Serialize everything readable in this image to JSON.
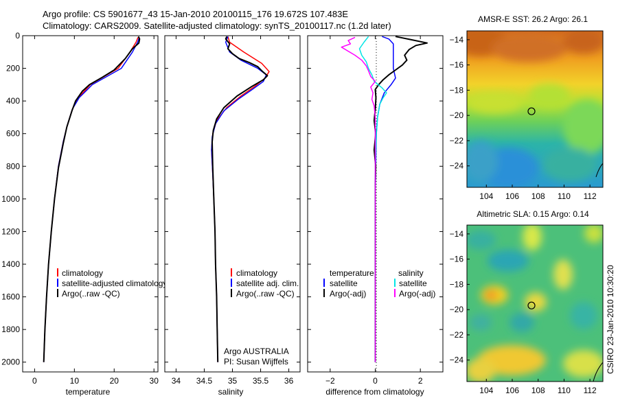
{
  "header": {
    "title_line1": "Argo profile: CS 5901677_43 15-Jan-2010 20100115_176 19.672S 107.483E",
    "title_line2": "Climatology: CARS2009. Satellite-adjusted climatology: synTS_20100117.nc (1.2d later)"
  },
  "side_stamp": "CSIRO 23-Jan-2010 10:30:20",
  "colors": {
    "red": "#ff0000",
    "blue": "#0000ff",
    "black": "#000000",
    "cyan": "#00e5e5",
    "magenta": "#ff00ff"
  },
  "chart_data": [
    {
      "id": "temperature",
      "type": "line",
      "title": "",
      "xlabel": "temperature",
      "ylabel": "",
      "xlim": [
        -3,
        31
      ],
      "ylim": [
        2060,
        0
      ],
      "xticks": [
        0,
        10,
        20,
        30
      ],
      "yticks": [
        0,
        200,
        400,
        600,
        800,
        1000,
        1200,
        1400,
        1600,
        1800,
        2000
      ],
      "series": [
        {
          "name": "climatology",
          "color": "red",
          "points": [
            [
              26.0,
              10
            ],
            [
              25.5,
              40
            ],
            [
              24.0,
              100
            ],
            [
              21.0,
              200
            ],
            [
              14.0,
              300
            ],
            [
              11.0,
              380
            ],
            [
              9.5,
              450
            ],
            [
              8.2,
              550
            ],
            [
              7.2,
              650
            ],
            [
              6.0,
              800
            ],
            [
              5.0,
              1000
            ],
            [
              4.2,
              1200
            ],
            [
              3.5,
              1400
            ],
            [
              3.0,
              1600
            ],
            [
              2.6,
              1800
            ],
            [
              2.3,
              2000
            ]
          ]
        },
        {
          "name": "satellite-adjusted climatology",
          "color": "blue",
          "points": [
            [
              26.3,
              10
            ],
            [
              25.9,
              40
            ],
            [
              24.6,
              100
            ],
            [
              21.8,
              200
            ],
            [
              14.5,
              300
            ],
            [
              11.2,
              380
            ],
            [
              9.5,
              450
            ],
            [
              8.2,
              550
            ],
            [
              7.2,
              650
            ],
            [
              6.0,
              800
            ],
            [
              5.0,
              1000
            ],
            [
              4.2,
              1200
            ],
            [
              3.5,
              1400
            ],
            [
              3.0,
              1600
            ],
            [
              2.6,
              1800
            ],
            [
              2.3,
              2000
            ]
          ]
        },
        {
          "name": "Argo(..raw -QC)",
          "color": "black",
          "points": [
            [
              26.1,
              5
            ],
            [
              26.4,
              20
            ],
            [
              26.2,
              45
            ],
            [
              24.6,
              80
            ],
            [
              22.8,
              140
            ],
            [
              20.0,
              210
            ],
            [
              17.0,
              255
            ],
            [
              13.8,
              300
            ],
            [
              12.0,
              340
            ],
            [
              10.3,
              400
            ],
            [
              9.4,
              460
            ],
            [
              8.1,
              560
            ],
            [
              7.2,
              660
            ],
            [
              6.0,
              810
            ],
            [
              5.0,
              1000
            ],
            [
              4.2,
              1200
            ],
            [
              3.5,
              1400
            ],
            [
              3.0,
              1600
            ],
            [
              2.6,
              1800
            ],
            [
              2.3,
              2000
            ]
          ]
        }
      ],
      "legend": {
        "position": "bottom-right",
        "entries": [
          {
            "label": "climatology",
            "color": "red"
          },
          {
            "label": "satellite-adjusted climatology",
            "color": "blue"
          },
          {
            "label": "Argo(..raw -QC)",
            "color": "black"
          }
        ]
      }
    },
    {
      "id": "salinity",
      "type": "line",
      "title": "",
      "xlabel": "salinity",
      "ylabel": "",
      "xlim": [
        33.8,
        36.2
      ],
      "ylim": [
        2060,
        0
      ],
      "xticks": [
        34,
        34.5,
        35,
        35.5,
        36
      ],
      "yticks": [
        0,
        200,
        400,
        600,
        800,
        1000,
        1200,
        1400,
        1600,
        1800,
        2000
      ],
      "series": [
        {
          "name": "climatology",
          "color": "red",
          "points": [
            [
              34.92,
              5
            ],
            [
              34.95,
              40
            ],
            [
              35.2,
              100
            ],
            [
              35.52,
              170
            ],
            [
              35.65,
              220
            ],
            [
              35.58,
              260
            ],
            [
              35.4,
              310
            ],
            [
              35.15,
              370
            ],
            [
              34.9,
              440
            ],
            [
              34.72,
              520
            ],
            [
              34.65,
              600
            ],
            [
              34.63,
              700
            ],
            [
              34.65,
              850
            ],
            [
              34.67,
              1000
            ],
            [
              34.69,
              1200
            ],
            [
              34.7,
              1400
            ],
            [
              34.72,
              1600
            ],
            [
              34.73,
              1800
            ],
            [
              34.74,
              2000
            ]
          ]
        },
        {
          "name": "satellite adj. clim.",
          "color": "blue",
          "points": [
            [
              34.92,
              5
            ],
            [
              34.88,
              40
            ],
            [
              34.95,
              100
            ],
            [
              35.15,
              150
            ],
            [
              35.45,
              200
            ],
            [
              35.6,
              240
            ],
            [
              35.55,
              280
            ],
            [
              35.35,
              330
            ],
            [
              35.1,
              390
            ],
            [
              34.85,
              460
            ],
            [
              34.7,
              540
            ],
            [
              34.64,
              620
            ],
            [
              34.63,
              700
            ],
            [
              34.65,
              850
            ],
            [
              34.67,
              1000
            ],
            [
              34.69,
              1200
            ],
            [
              34.7,
              1400
            ],
            [
              34.72,
              1600
            ],
            [
              34.73,
              1800
            ],
            [
              34.74,
              2000
            ]
          ]
        },
        {
          "name": "Argo(..raw -QC)",
          "color": "black",
          "points": [
            [
              34.9,
              5
            ],
            [
              34.88,
              20
            ],
            [
              34.95,
              50
            ],
            [
              34.92,
              80
            ],
            [
              35.0,
              110
            ],
            [
              35.12,
              140
            ],
            [
              35.3,
              165
            ],
            [
              35.45,
              190
            ],
            [
              35.52,
              215
            ],
            [
              35.62,
              245
            ],
            [
              35.55,
              270
            ],
            [
              35.35,
              310
            ],
            [
              35.08,
              370
            ],
            [
              34.85,
              440
            ],
            [
              34.72,
              510
            ],
            [
              34.66,
              580
            ],
            [
              34.64,
              650
            ],
            [
              34.65,
              800
            ],
            [
              34.67,
              1000
            ],
            [
              34.69,
              1200
            ],
            [
              34.7,
              1400
            ],
            [
              34.72,
              1600
            ],
            [
              34.73,
              1800
            ],
            [
              34.74,
              2000
            ]
          ]
        }
      ],
      "legend": {
        "position": "bottom-right",
        "entries": [
          {
            "label": "climatology",
            "color": "red"
          },
          {
            "label": "satellite adj. clim.",
            "color": "blue"
          },
          {
            "label": "Argo(..raw -QC)",
            "color": "black"
          }
        ]
      },
      "annotation": [
        "Argo AUSTRALIA",
        "PI: Susan Wijffels"
      ]
    },
    {
      "id": "difference",
      "type": "line",
      "title": "",
      "xlabel": "difference from climatology",
      "ylabel": "",
      "xlim": [
        -3,
        3
      ],
      "ylim": [
        2060,
        0
      ],
      "xticks": [
        -2,
        0,
        2
      ],
      "yticks": [
        0,
        200,
        400,
        600,
        800,
        1000,
        1200,
        1400,
        1600,
        1800,
        2000
      ],
      "series": [
        {
          "name": "temperature satellite",
          "color": "blue",
          "points": [
            [
              0.3,
              5
            ],
            [
              0.6,
              20
            ],
            [
              0.8,
              50
            ],
            [
              0.8,
              120
            ],
            [
              0.8,
              200
            ],
            [
              0.9,
              260
            ],
            [
              0.7,
              300
            ],
            [
              0.4,
              350
            ],
            [
              0.2,
              420
            ],
            [
              0.1,
              500
            ],
            [
              0.05,
              600
            ],
            [
              0.02,
              800
            ],
            [
              0.0,
              1000
            ],
            [
              0.0,
              1500
            ],
            [
              0.0,
              2000
            ]
          ]
        },
        {
          "name": "temperature Argo(-adj)",
          "color": "black",
          "points": [
            [
              0.9,
              5
            ],
            [
              1.6,
              25
            ],
            [
              2.3,
              45
            ],
            [
              1.8,
              60
            ],
            [
              1.5,
              85
            ],
            [
              1.3,
              120
            ],
            [
              1.4,
              150
            ],
            [
              1.2,
              180
            ],
            [
              0.9,
              210
            ],
            [
              0.6,
              240
            ],
            [
              0.35,
              270
            ],
            [
              0.15,
              300
            ],
            [
              0.0,
              330
            ],
            [
              0.03,
              380
            ],
            [
              0.0,
              450
            ],
            [
              -0.05,
              520
            ],
            [
              0.02,
              600
            ],
            [
              -0.05,
              700
            ],
            [
              0.02,
              800
            ],
            [
              0.0,
              900
            ],
            [
              0.0,
              1200
            ],
            [
              0.0,
              1600
            ],
            [
              0.0,
              2000
            ]
          ]
        },
        {
          "name": "salinity satellite",
          "color": "cyan",
          "points": [
            [
              -0.3,
              5
            ],
            [
              -0.5,
              40
            ],
            [
              -0.7,
              80
            ],
            [
              -0.6,
              120
            ],
            [
              -0.4,
              160
            ],
            [
              -0.3,
              200
            ],
            [
              -0.15,
              240
            ],
            [
              -0.05,
              280
            ],
            [
              0.3,
              320
            ],
            [
              0.5,
              350
            ],
            [
              0.35,
              380
            ],
            [
              0.2,
              420
            ],
            [
              0.1,
              500
            ],
            [
              0.05,
              600
            ],
            [
              0.0,
              800
            ],
            [
              0.0,
              2000
            ]
          ]
        },
        {
          "name": "salinity Argo(-adj)",
          "color": "magenta",
          "points": [
            [
              -0.9,
              10
            ],
            [
              -1.2,
              30
            ],
            [
              -1.1,
              50
            ],
            [
              -1.5,
              70
            ],
            [
              -1.2,
              95
            ],
            [
              -0.9,
              120
            ],
            [
              -0.6,
              150
            ],
            [
              -0.4,
              185
            ],
            [
              -0.3,
              215
            ],
            [
              -0.2,
              250
            ],
            [
              0.0,
              280
            ],
            [
              -0.2,
              315
            ],
            [
              -0.1,
              350
            ],
            [
              -0.15,
              390
            ],
            [
              -0.05,
              430
            ],
            [
              0.0,
              500
            ],
            [
              0.0,
              1000
            ],
            [
              0.0,
              2000
            ]
          ]
        }
      ],
      "legend": {
        "position": "bottom",
        "group_temperature": "temperature",
        "group_salinity": "salinity",
        "entries": [
          {
            "label": "satellite",
            "color": "blue"
          },
          {
            "label": "Argo(-adj)",
            "color": "black"
          },
          {
            "label": "satellite",
            "color": "cyan"
          },
          {
            "label": "Argo(-adj)",
            "color": "magenta"
          }
        ]
      }
    },
    {
      "id": "sst_map",
      "type": "heatmap",
      "title": "AMSR-E SST: 26.2 Argo: 26.1",
      "xlim": [
        102.5,
        113.0
      ],
      "ylim": [
        -25.7,
        -13.3
      ],
      "xticks": [
        104,
        106,
        108,
        110,
        112
      ],
      "yticks": [
        -14,
        -16,
        -18,
        -20,
        -22,
        -24
      ],
      "float_position": [
        107.483,
        -19.672
      ]
    },
    {
      "id": "sla_map",
      "type": "heatmap",
      "title": "Altimetric SLA: 0.15 Argo: 0.14",
      "xlim": [
        102.5,
        113.0
      ],
      "ylim": [
        -25.7,
        -13.3
      ],
      "xticks": [
        104,
        106,
        108,
        110,
        112
      ],
      "yticks": [
        -14,
        -16,
        -18,
        -20,
        -22,
        -24
      ],
      "float_position": [
        107.483,
        -19.672
      ]
    }
  ]
}
